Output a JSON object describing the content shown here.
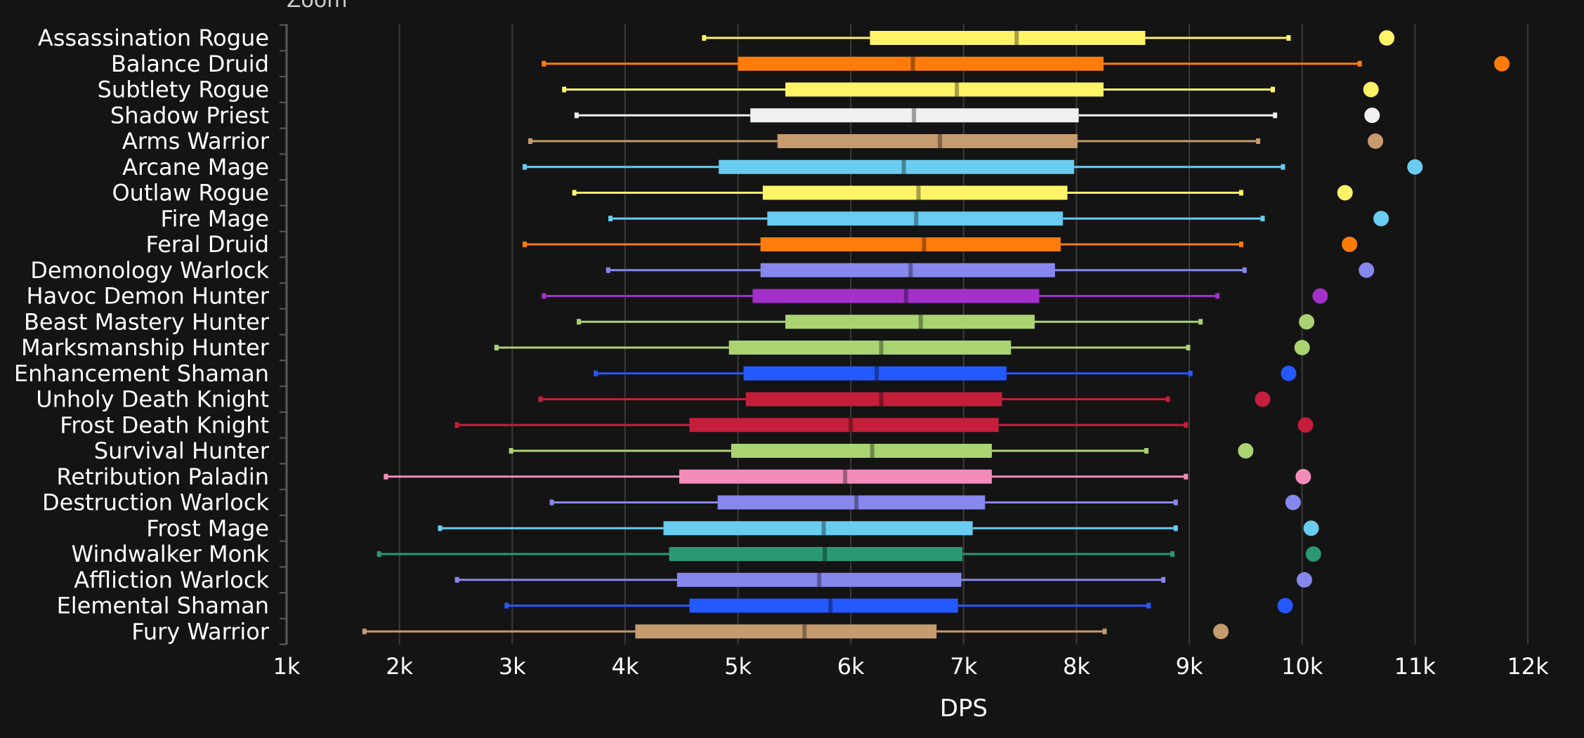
{
  "zoom_label": "Zoom",
  "chart_data": {
    "type": "boxplot",
    "orientation": "horizontal",
    "title": "",
    "xlabel": "DPS",
    "ylabel": "",
    "xlim": [
      1000,
      12000
    ],
    "x_ticks": [
      1000,
      2000,
      3000,
      4000,
      5000,
      6000,
      7000,
      8000,
      9000,
      10000,
      11000,
      12000
    ],
    "x_tick_labels": [
      "1k",
      "2k",
      "3k",
      "4k",
      "5k",
      "6k",
      "7k",
      "8k",
      "9k",
      "10k",
      "11k",
      "12k"
    ],
    "grid": "vertical",
    "categories": [
      "Assassination Rogue",
      "Balance Druid",
      "Subtlety Rogue",
      "Shadow Priest",
      "Arms Warrior",
      "Arcane Mage",
      "Outlaw Rogue",
      "Fire Mage",
      "Feral Druid",
      "Demonology Warlock",
      "Havoc Demon Hunter",
      "Beast Mastery Hunter",
      "Marksmanship Hunter",
      "Enhancement Shaman",
      "Unholy Death Knight",
      "Frost Death Knight",
      "Survival Hunter",
      "Retribution Paladin",
      "Destruction Warlock",
      "Frost Mage",
      "Windwalker Monk",
      "Affliction Warlock",
      "Elemental Shaman",
      "Fury Warrior"
    ],
    "series": [
      {
        "min": 4700,
        "q1": 6170,
        "median": 7470,
        "q3": 8610,
        "max": 9880,
        "outlier": 10750,
        "color": "#fff468"
      },
      {
        "min": 3280,
        "q1": 5000,
        "median": 6550,
        "q3": 8240,
        "max": 10510,
        "outlier": 11770,
        "color": "#ff7c0a"
      },
      {
        "min": 3460,
        "q1": 5420,
        "median": 6940,
        "q3": 8240,
        "max": 9740,
        "outlier": 10610,
        "color": "#fff468"
      },
      {
        "min": 3570,
        "q1": 5110,
        "median": 6560,
        "q3": 8020,
        "max": 9760,
        "outlier": 10620,
        "color": "#f0f0f0"
      },
      {
        "min": 3160,
        "q1": 5350,
        "median": 6790,
        "q3": 8010,
        "max": 9610,
        "outlier": 10650,
        "color": "#c69b6d"
      },
      {
        "min": 3110,
        "q1": 4830,
        "median": 6470,
        "q3": 7980,
        "max": 9830,
        "outlier": 11000,
        "color": "#69ccf0"
      },
      {
        "min": 3550,
        "q1": 5220,
        "median": 6600,
        "q3": 7920,
        "max": 9460,
        "outlier": 10380,
        "color": "#fff468"
      },
      {
        "min": 3870,
        "q1": 5260,
        "median": 6580,
        "q3": 7880,
        "max": 9650,
        "outlier": 10700,
        "color": "#69ccf0"
      },
      {
        "min": 3110,
        "q1": 5200,
        "median": 6650,
        "q3": 7860,
        "max": 9460,
        "outlier": 10420,
        "color": "#ff7c0a"
      },
      {
        "min": 3850,
        "q1": 5200,
        "median": 6530,
        "q3": 7810,
        "max": 9490,
        "outlier": 10570,
        "color": "#8788ee"
      },
      {
        "min": 3280,
        "q1": 5130,
        "median": 6490,
        "q3": 7670,
        "max": 9250,
        "outlier": 10160,
        "color": "#a330c9"
      },
      {
        "min": 3590,
        "q1": 5420,
        "median": 6620,
        "q3": 7630,
        "max": 9100,
        "outlier": 10040,
        "color": "#aad372"
      },
      {
        "min": 2860,
        "q1": 4920,
        "median": 6270,
        "q3": 7420,
        "max": 8990,
        "outlier": 10000,
        "color": "#aad372"
      },
      {
        "min": 3740,
        "q1": 5050,
        "median": 6230,
        "q3": 7380,
        "max": 9010,
        "outlier": 9880,
        "color": "#2459ff"
      },
      {
        "min": 3250,
        "q1": 5070,
        "median": 6270,
        "q3": 7340,
        "max": 8810,
        "outlier": 9650,
        "color": "#c41e3a"
      },
      {
        "min": 2510,
        "q1": 4570,
        "median": 6000,
        "q3": 7310,
        "max": 8970,
        "outlier": 10030,
        "color": "#c41e3a"
      },
      {
        "min": 2990,
        "q1": 4940,
        "median": 6190,
        "q3": 7250,
        "max": 8620,
        "outlier": 9500,
        "color": "#aad372"
      },
      {
        "min": 1880,
        "q1": 4480,
        "median": 5950,
        "q3": 7250,
        "max": 8970,
        "outlier": 10010,
        "color": "#f48cba"
      },
      {
        "min": 3350,
        "q1": 4820,
        "median": 6050,
        "q3": 7190,
        "max": 8880,
        "outlier": 9920,
        "color": "#8788ee"
      },
      {
        "min": 2360,
        "q1": 4340,
        "median": 5760,
        "q3": 7080,
        "max": 8880,
        "outlier": 10080,
        "color": "#69ccf0"
      },
      {
        "min": 1820,
        "q1": 4390,
        "median": 5770,
        "q3": 6990,
        "max": 8850,
        "outlier": 10100,
        "color": "#2a9874"
      },
      {
        "min": 2510,
        "q1": 4460,
        "median": 5720,
        "q3": 6980,
        "max": 8770,
        "outlier": 10020,
        "color": "#8788ee"
      },
      {
        "min": 2950,
        "q1": 4570,
        "median": 5820,
        "q3": 6950,
        "max": 8640,
        "outlier": 9850,
        "color": "#2459ff"
      },
      {
        "min": 1690,
        "q1": 4090,
        "median": 5590,
        "q3": 6760,
        "max": 8250,
        "outlier": 9280,
        "color": "#c69b6d"
      }
    ]
  }
}
